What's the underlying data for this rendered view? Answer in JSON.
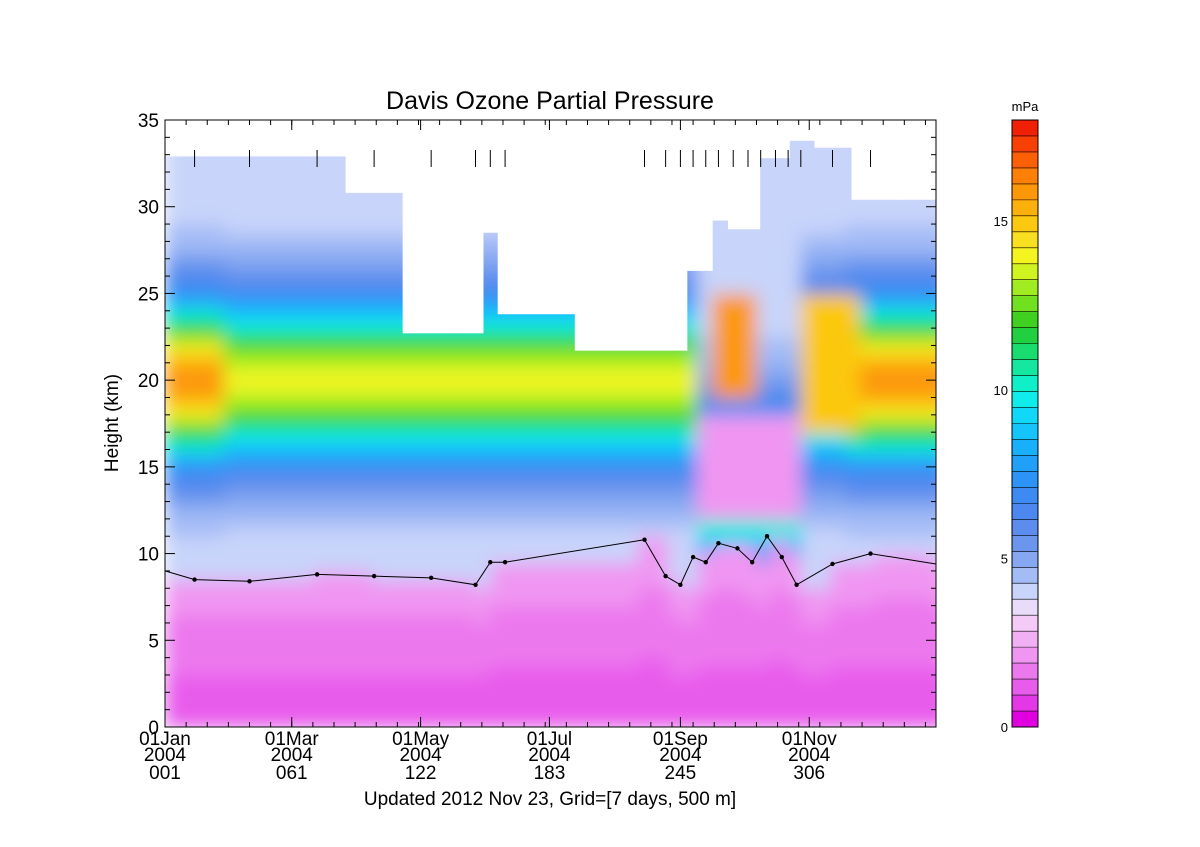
{
  "chart_data": {
    "type": "heatmap",
    "title": "Davis Ozone Partial Pressure",
    "ylabel": "Height (km)",
    "footnote": "Updated 2012 Nov 23, Grid=[7 days, 500 m]",
    "colorbar_label": "mPa",
    "xlim_day": [
      1,
      366
    ],
    "ylim": [
      0,
      35
    ],
    "y_ticks": [
      0,
      5,
      10,
      15,
      20,
      25,
      30,
      35
    ],
    "x_ticks": [
      {
        "day": 1,
        "label1": "01Jan",
        "label2": "2004",
        "label3": "001"
      },
      {
        "day": 61,
        "label1": "01Mar",
        "label2": "2004",
        "label3": "061"
      },
      {
        "day": 122,
        "label1": "01May",
        "label2": "2004",
        "label3": "122"
      },
      {
        "day": 183,
        "label1": "01Jul",
        "label2": "2004",
        "label3": "183"
      },
      {
        "day": 245,
        "label1": "01Sep",
        "label2": "2004",
        "label3": "245"
      },
      {
        "day": 306,
        "label1": "01Nov",
        "label2": "2004",
        "label3": "306"
      }
    ],
    "colorbar_ticks": [
      0,
      5,
      10,
      15
    ],
    "colorbar_range": [
      0,
      18
    ],
    "colorbar_colors": [
      "#e000e0",
      "#e438e8",
      "#e85cec",
      "#ec78ee",
      "#f096f2",
      "#f2b0f4",
      "#f4caf6",
      "#e8dcf8",
      "#c8d4fa",
      "#a4bcf6",
      "#86a8f2",
      "#6c96ee",
      "#5c8cee",
      "#4c88f0",
      "#3c8af2",
      "#2c94f6",
      "#20a0f8",
      "#18b0fa",
      "#14c4fa",
      "#10d8f8",
      "#10ecec",
      "#10f0c8",
      "#14e8a0",
      "#18dc70",
      "#20d040",
      "#40d020",
      "#70e020",
      "#a0ec20",
      "#d0f420",
      "#f4f420",
      "#f8e020",
      "#fcc810",
      "#fcb00c",
      "#fc9808",
      "#fc8006",
      "#fc6004",
      "#f84004",
      "#f02004"
    ],
    "soundings": [
      {
        "day": 15,
        "tropopause_km": 8.5,
        "top_km": 32.9
      },
      {
        "day": 41,
        "tropopause_km": 8.4,
        "top_km": 32.9
      },
      {
        "day": 73,
        "tropopause_km": 8.8,
        "top_km": 32.9
      },
      {
        "day": 100,
        "tropopause_km": 8.7,
        "top_km": 30.8
      },
      {
        "day": 127,
        "tropopause_km": 8.6,
        "top_km": 22.7
      },
      {
        "day": 148,
        "tropopause_km": 8.2,
        "top_km": 22.7
      },
      {
        "day": 155,
        "tropopause_km": 9.5,
        "top_km": 28.5
      },
      {
        "day": 162,
        "tropopause_km": 9.5,
        "top_km": 23.8
      },
      {
        "day": 228,
        "tropopause_km": 10.8,
        "top_km": 21.7
      },
      {
        "day": 238,
        "tropopause_km": 8.7,
        "top_km": 21.7
      },
      {
        "day": 245,
        "tropopause_km": 8.2,
        "top_km": 21.7
      },
      {
        "day": 251,
        "tropopause_km": 9.8,
        "top_km": 26.3
      },
      {
        "day": 257,
        "tropopause_km": 9.5,
        "top_km": 26.3
      },
      {
        "day": 263,
        "tropopause_km": 10.6,
        "top_km": 29.2
      },
      {
        "day": 272,
        "tropopause_km": 10.3,
        "top_km": 28.7
      },
      {
        "day": 279,
        "tropopause_km": 9.5,
        "top_km": 28.7
      },
      {
        "day": 286,
        "tropopause_km": 11.0,
        "top_km": 32.8
      },
      {
        "day": 293,
        "tropopause_km": 9.8,
        "top_km": 32.8
      },
      {
        "day": 300,
        "tropopause_km": 8.2,
        "top_km": 33.8
      },
      {
        "day": 317,
        "tropopause_km": 9.4,
        "top_km": 33.4
      },
      {
        "day": 335,
        "tropopause_km": 10.0,
        "top_km": 30.4
      },
      {
        "day": 366,
        "tropopause_km": 9.4,
        "top_km": 30.4
      }
    ],
    "series": [
      {
        "name": "",
        "x_day": [
          1,
          15,
          41,
          73,
          100,
          127,
          148,
          155,
          162,
          228,
          238,
          245,
          251,
          257,
          263,
          272,
          279,
          286,
          293,
          300,
          317,
          335,
          366
        ],
        "tropopause_km": [
          9.0,
          8.5,
          8.4,
          8.8,
          8.7,
          8.6,
          8.2,
          9.5,
          9.5,
          10.8,
          8.7,
          8.2,
          9.8,
          9.5,
          10.6,
          10.3,
          9.5,
          11.0,
          9.8,
          8.2,
          9.4,
          10.0,
          9.4
        ]
      }
    ],
    "launch_marks_day": [
      15,
      41,
      73,
      100,
      127,
      148,
      155,
      162,
      228,
      238,
      245,
      251,
      257,
      263,
      270,
      277,
      283,
      290,
      296,
      302,
      317,
      335
    ]
  }
}
